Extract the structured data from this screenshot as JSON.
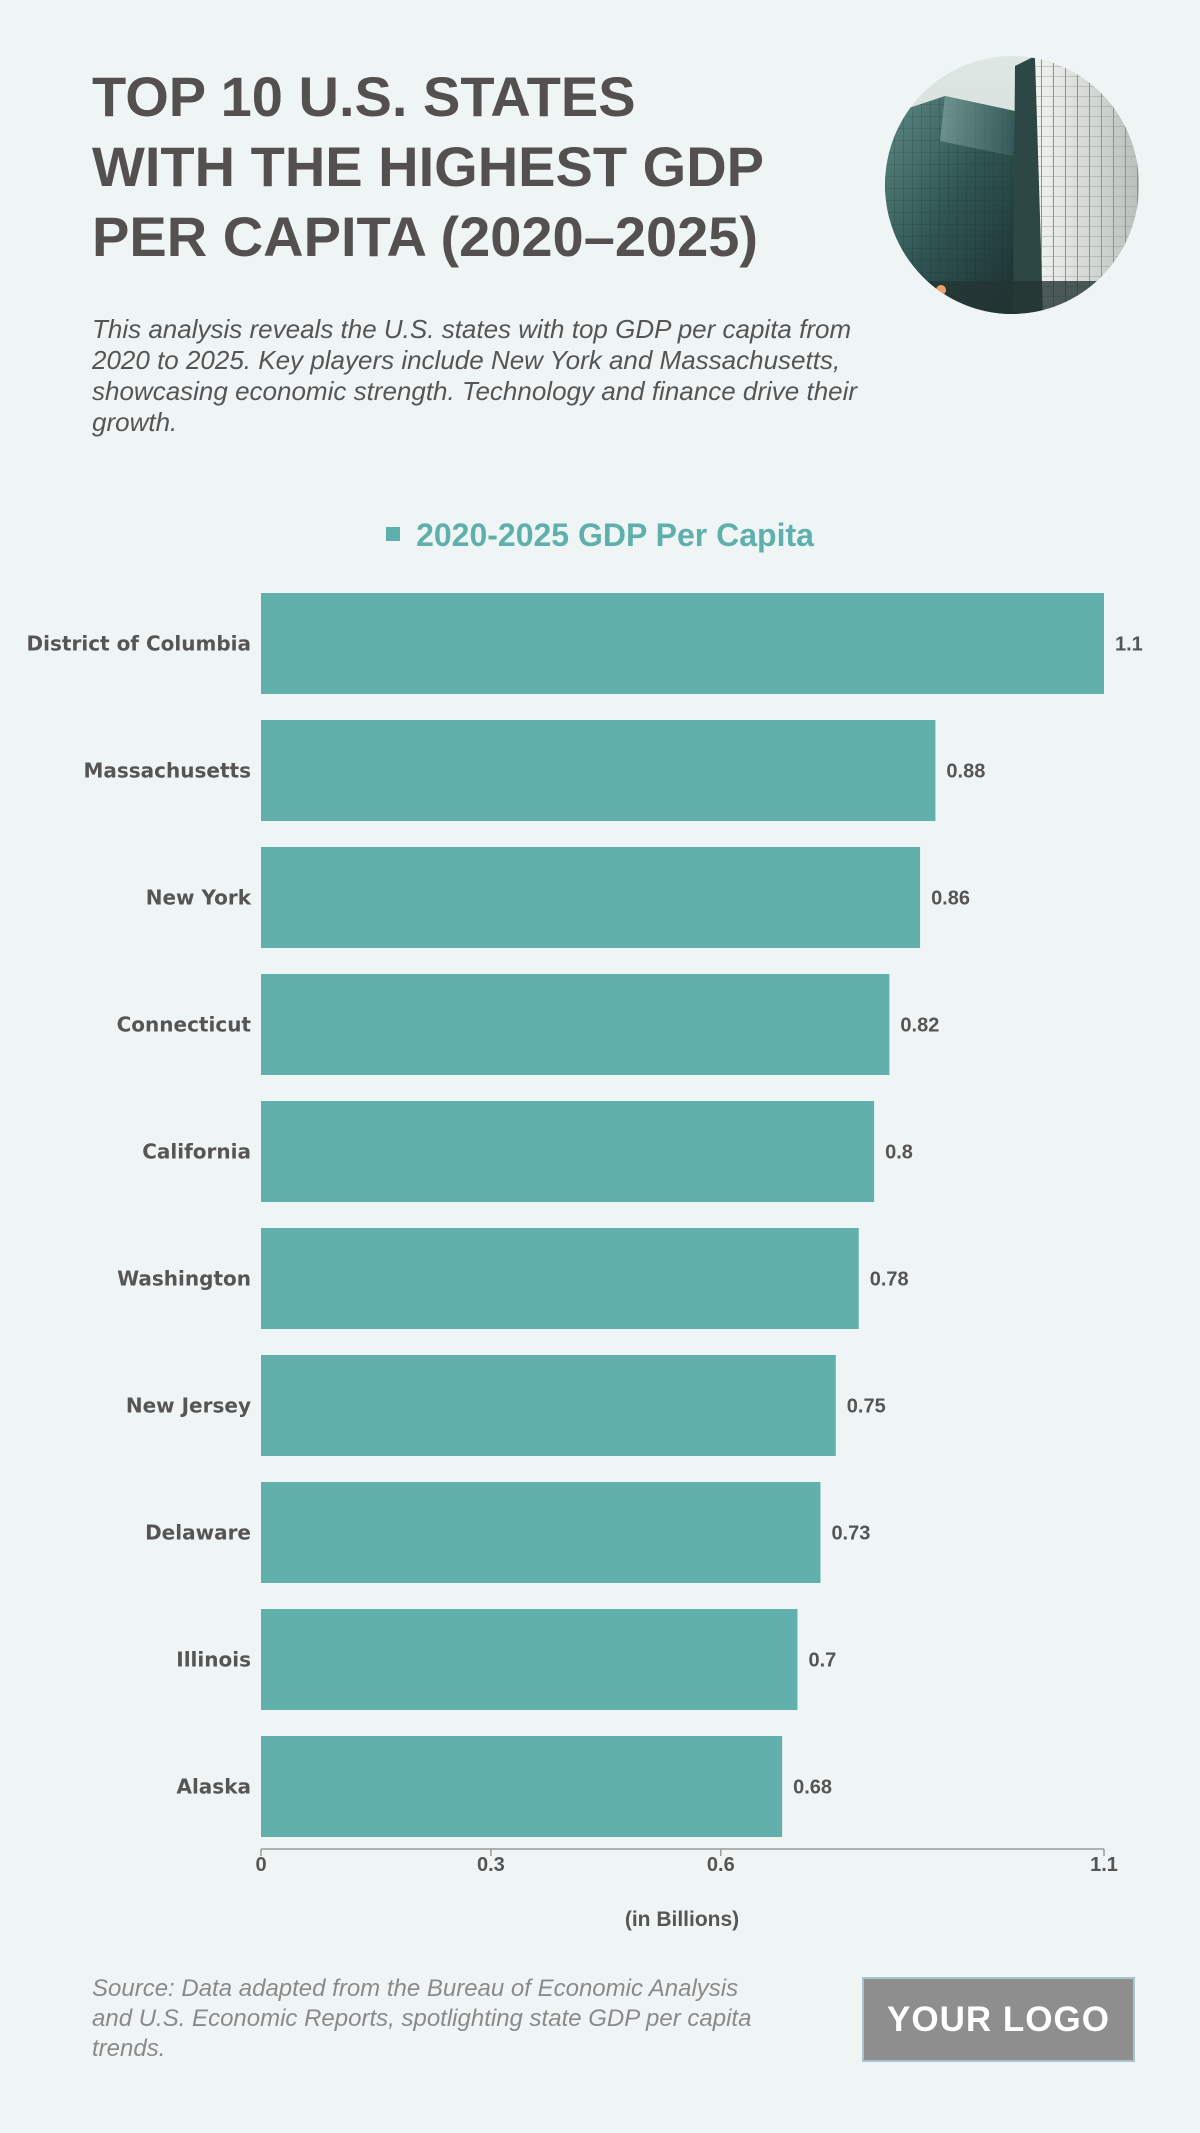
{
  "header": {
    "title_lines": [
      "TOP 10 U.S. STATES",
      "WITH THE HIGHEST GDP",
      "PER CAPITA (2020–2025)"
    ],
    "description": "This analysis reveals the U.S. states with top GDP per capita from 2020 to 2025. Key players include New York and Massachusetts, showcasing economic strength. Technology and finance drive their growth."
  },
  "colors": {
    "bar": "#62b0ac",
    "accent": "#5fb0ad",
    "text": "#545050",
    "background": "#eff5f5"
  },
  "chart_data": {
    "type": "bar",
    "orientation": "horizontal",
    "legend": "2020-2025 GDP Per Capita",
    "legend_position": "top-center",
    "categories": [
      "District of Columbia",
      "Massachusetts",
      "New York",
      "Connecticut",
      "California",
      "Washington",
      "New Jersey",
      "Delaware",
      "Illinois",
      "Alaska"
    ],
    "series": [
      {
        "name": "2020-2025 GDP Per Capita",
        "values": [
          1.1,
          0.88,
          0.86,
          0.82,
          0.8,
          0.78,
          0.75,
          0.73,
          0.7,
          0.68
        ]
      }
    ],
    "value_labels": [
      "1.1",
      "0.88",
      "0.86",
      "0.82",
      "0.8",
      "0.78",
      "0.75",
      "0.73",
      "0.7",
      "0.68"
    ],
    "xlim": [
      0,
      1.1
    ],
    "xticks": [
      0,
      0.3,
      0.6,
      1.1
    ],
    "xtick_labels": [
      "0",
      "0.3",
      "0.6",
      "1.1"
    ],
    "xlabel": "(in Billions)",
    "ylabel": "",
    "grid": false
  },
  "footer": {
    "source": "Source: Data adapted from the Bureau of Economic Analysis and U.S. Economic Reports, spotlighting state GDP per capita trends.",
    "logo_text": "YOUR LOGO"
  }
}
